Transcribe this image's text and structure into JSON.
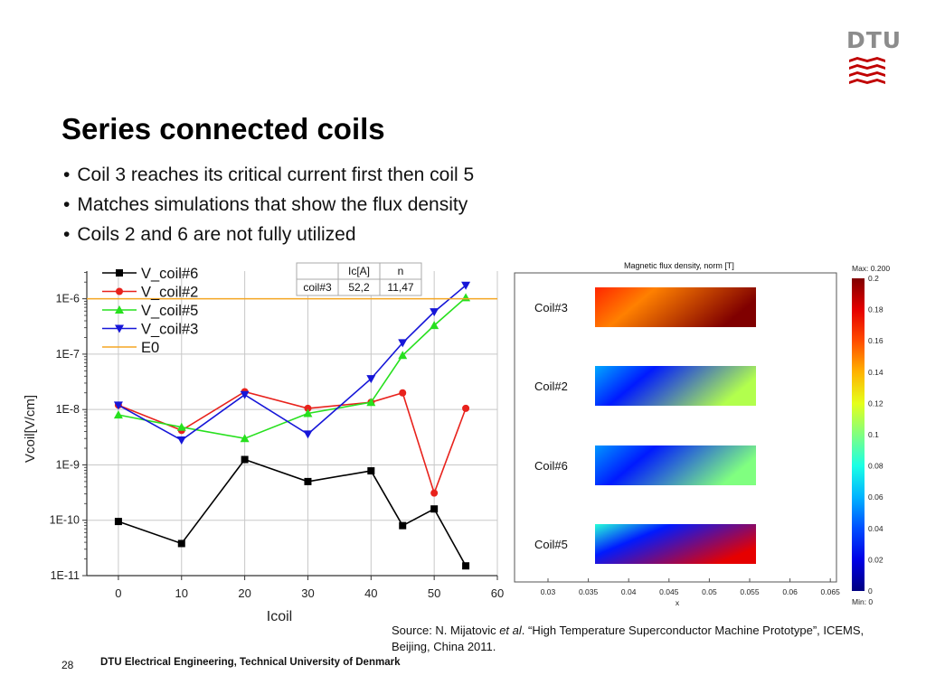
{
  "logo": {
    "text": "DTU",
    "color": "#c00000"
  },
  "slide": {
    "title": "Series connected coils",
    "bullets": [
      "Coil 3 reaches its critical current first then coil 5",
      "Matches simulations that show the flux density",
      "Coils 2 and 6 are not fully utilized"
    ]
  },
  "chart_data": [
    {
      "type": "line",
      "xlabel": "Icoil",
      "ylabel": "Vcoil[V/cm]",
      "xlim": [
        -5,
        60
      ],
      "ylim_log10": [
        -11,
        -5.5
      ],
      "y_scale": "log",
      "xticks": [
        "0",
        "10",
        "20",
        "30",
        "40",
        "50",
        "60"
      ],
      "yticks": [
        "1E-11",
        "1E-10",
        "1E-9",
        "1E-8",
        "1E-7",
        "1E-6"
      ],
      "grid": true,
      "legend_position": "top-left",
      "series": [
        {
          "name": "V_coil#6",
          "color": "#000000",
          "marker": "square",
          "x": [
            0,
            10,
            20,
            30,
            40,
            45,
            50,
            55
          ],
          "y": [
            9.5e-11,
            3.8e-11,
            1.25e-09,
            5e-10,
            7.8e-10,
            8e-11,
            1.6e-10,
            1.5e-11
          ]
        },
        {
          "name": "V_coil#2",
          "color": "#e8221c",
          "marker": "circle",
          "x": [
            0,
            10,
            20,
            30,
            40,
            45,
            50,
            55
          ],
          "y": [
            1.2e-08,
            4.2e-09,
            2.1e-08,
            1.05e-08,
            1.35e-08,
            2e-08,
            3.1e-10,
            1.05e-08
          ]
        },
        {
          "name": "V_coil#5",
          "color": "#27e01e",
          "marker": "triangle-up",
          "x": [
            0,
            10,
            20,
            30,
            40,
            45,
            50,
            55
          ],
          "y": [
            8e-09,
            4.8e-09,
            3e-09,
            8.5e-09,
            1.35e-08,
            9.5e-08,
            3.3e-07,
            1.05e-06
          ]
        },
        {
          "name": "V_coil#3",
          "color": "#1616d8",
          "marker": "triangle-down",
          "x": [
            0,
            10,
            20,
            30,
            40,
            45,
            50,
            55
          ],
          "y": [
            1.2e-08,
            2.8e-09,
            1.85e-08,
            3.6e-09,
            3.6e-08,
            1.6e-07,
            5.8e-07,
            1.75e-06
          ]
        },
        {
          "name": "E0",
          "color": "#f5a623",
          "marker": "none",
          "type": "hline",
          "y_value": 1e-06
        }
      ],
      "inset_table": {
        "headers": [
          "",
          "Ic[A]",
          "n"
        ],
        "rows": [
          [
            "coil#3",
            "52,2",
            "11,47"
          ]
        ]
      }
    },
    {
      "type": "heatmap",
      "title": "Magnetic flux density, norm [T]",
      "xlabel": "x",
      "xticks": [
        "0.03",
        "0.035",
        "0.04",
        "0.045",
        "0.05",
        "0.055",
        "0.06",
        "0.065"
      ],
      "colorbar": {
        "max_label": "Max: 0.200",
        "min_label": "Min: 0",
        "ticks": [
          "0.2",
          "0.18",
          "0.16",
          "0.14",
          "0.12",
          "0.1",
          "0.08",
          "0.06",
          "0.04",
          "0.02",
          "0"
        ]
      },
      "regions": [
        {
          "label": "Coil#3",
          "low_norm": 0.15,
          "high_norm": 0.2
        },
        {
          "label": "Coil#2",
          "low_norm": 0.03,
          "high_norm": 0.11
        },
        {
          "label": "Coil#6",
          "low_norm": 0.03,
          "high_norm": 0.1
        },
        {
          "label": "Coil#5",
          "low_norm": 0.03,
          "high_norm": 0.18
        }
      ]
    }
  ],
  "source": {
    "prefix": "Source: N. Mijatovic ",
    "etal": "et al",
    "suffix": ". “High Temperature Superconductor Machine Prototype”, ICEMS, Beijing, China 2011."
  },
  "footer": {
    "page": "28",
    "text": "DTU Electrical Engineering, Technical University of Denmark"
  }
}
